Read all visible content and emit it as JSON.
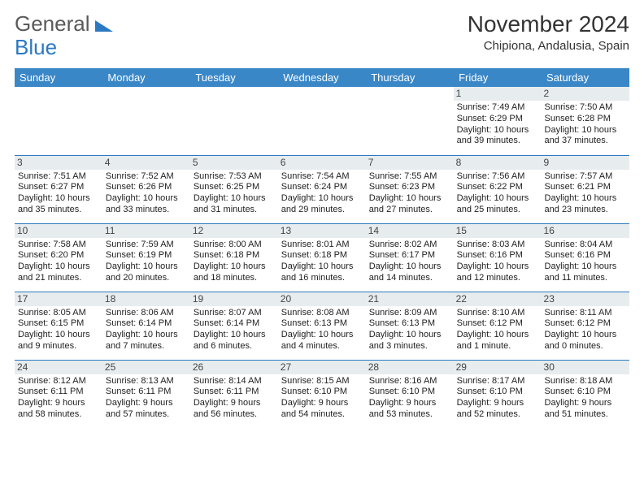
{
  "brand": {
    "word1": "General",
    "word2": "Blue"
  },
  "title": {
    "month": "November 2024",
    "location": "Chipiona, Andalusia, Spain"
  },
  "style": {
    "header_bg": "#3a87c8",
    "header_text": "#ffffff",
    "divider": "#2b79c2",
    "daynum_bg": "#e7ecef",
    "body_text": "#222222",
    "title_color": "#333333",
    "logo_gray": "#5a5a5a",
    "month_fontsize": 28,
    "location_fontsize": 15,
    "dayhead_fontsize": 13,
    "cell_fontsize": 11
  },
  "day_headers": [
    "Sunday",
    "Monday",
    "Tuesday",
    "Wednesday",
    "Thursday",
    "Friday",
    "Saturday"
  ],
  "weeks": [
    [
      null,
      null,
      null,
      null,
      null,
      {
        "n": "1",
        "sr": "7:49 AM",
        "ss": "6:29 PM",
        "dl": "10 hours and 39 minutes."
      },
      {
        "n": "2",
        "sr": "7:50 AM",
        "ss": "6:28 PM",
        "dl": "10 hours and 37 minutes."
      }
    ],
    [
      {
        "n": "3",
        "sr": "7:51 AM",
        "ss": "6:27 PM",
        "dl": "10 hours and 35 minutes."
      },
      {
        "n": "4",
        "sr": "7:52 AM",
        "ss": "6:26 PM",
        "dl": "10 hours and 33 minutes."
      },
      {
        "n": "5",
        "sr": "7:53 AM",
        "ss": "6:25 PM",
        "dl": "10 hours and 31 minutes."
      },
      {
        "n": "6",
        "sr": "7:54 AM",
        "ss": "6:24 PM",
        "dl": "10 hours and 29 minutes."
      },
      {
        "n": "7",
        "sr": "7:55 AM",
        "ss": "6:23 PM",
        "dl": "10 hours and 27 minutes."
      },
      {
        "n": "8",
        "sr": "7:56 AM",
        "ss": "6:22 PM",
        "dl": "10 hours and 25 minutes."
      },
      {
        "n": "9",
        "sr": "7:57 AM",
        "ss": "6:21 PM",
        "dl": "10 hours and 23 minutes."
      }
    ],
    [
      {
        "n": "10",
        "sr": "7:58 AM",
        "ss": "6:20 PM",
        "dl": "10 hours and 21 minutes."
      },
      {
        "n": "11",
        "sr": "7:59 AM",
        "ss": "6:19 PM",
        "dl": "10 hours and 20 minutes."
      },
      {
        "n": "12",
        "sr": "8:00 AM",
        "ss": "6:18 PM",
        "dl": "10 hours and 18 minutes."
      },
      {
        "n": "13",
        "sr": "8:01 AM",
        "ss": "6:18 PM",
        "dl": "10 hours and 16 minutes."
      },
      {
        "n": "14",
        "sr": "8:02 AM",
        "ss": "6:17 PM",
        "dl": "10 hours and 14 minutes."
      },
      {
        "n": "15",
        "sr": "8:03 AM",
        "ss": "6:16 PM",
        "dl": "10 hours and 12 minutes."
      },
      {
        "n": "16",
        "sr": "8:04 AM",
        "ss": "6:16 PM",
        "dl": "10 hours and 11 minutes."
      }
    ],
    [
      {
        "n": "17",
        "sr": "8:05 AM",
        "ss": "6:15 PM",
        "dl": "10 hours and 9 minutes."
      },
      {
        "n": "18",
        "sr": "8:06 AM",
        "ss": "6:14 PM",
        "dl": "10 hours and 7 minutes."
      },
      {
        "n": "19",
        "sr": "8:07 AM",
        "ss": "6:14 PM",
        "dl": "10 hours and 6 minutes."
      },
      {
        "n": "20",
        "sr": "8:08 AM",
        "ss": "6:13 PM",
        "dl": "10 hours and 4 minutes."
      },
      {
        "n": "21",
        "sr": "8:09 AM",
        "ss": "6:13 PM",
        "dl": "10 hours and 3 minutes."
      },
      {
        "n": "22",
        "sr": "8:10 AM",
        "ss": "6:12 PM",
        "dl": "10 hours and 1 minute."
      },
      {
        "n": "23",
        "sr": "8:11 AM",
        "ss": "6:12 PM",
        "dl": "10 hours and 0 minutes."
      }
    ],
    [
      {
        "n": "24",
        "sr": "8:12 AM",
        "ss": "6:11 PM",
        "dl": "9 hours and 58 minutes."
      },
      {
        "n": "25",
        "sr": "8:13 AM",
        "ss": "6:11 PM",
        "dl": "9 hours and 57 minutes."
      },
      {
        "n": "26",
        "sr": "8:14 AM",
        "ss": "6:11 PM",
        "dl": "9 hours and 56 minutes."
      },
      {
        "n": "27",
        "sr": "8:15 AM",
        "ss": "6:10 PM",
        "dl": "9 hours and 54 minutes."
      },
      {
        "n": "28",
        "sr": "8:16 AM",
        "ss": "6:10 PM",
        "dl": "9 hours and 53 minutes."
      },
      {
        "n": "29",
        "sr": "8:17 AM",
        "ss": "6:10 PM",
        "dl": "9 hours and 52 minutes."
      },
      {
        "n": "30",
        "sr": "8:18 AM",
        "ss": "6:10 PM",
        "dl": "9 hours and 51 minutes."
      }
    ]
  ],
  "labels": {
    "sunrise": "Sunrise:",
    "sunset": "Sunset:",
    "daylight": "Daylight:"
  }
}
